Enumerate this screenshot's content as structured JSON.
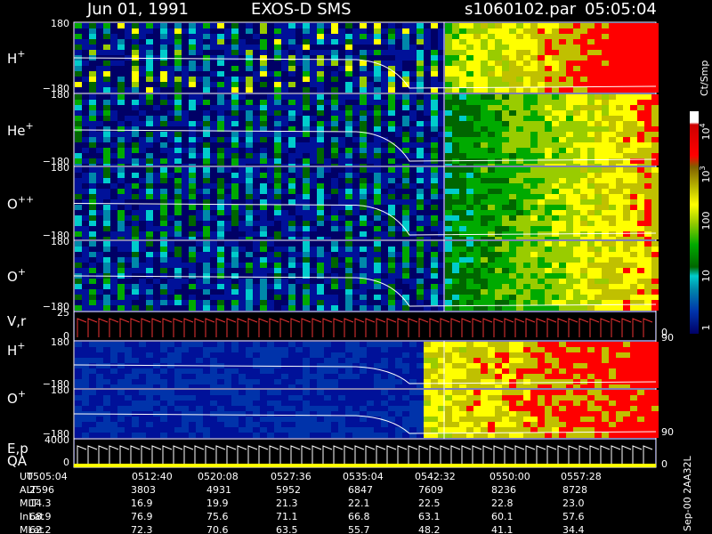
{
  "header": {
    "date": "Jun 01, 1991",
    "instrument": "EXOS-D SMS",
    "file": "s1060102.par",
    "time": "05:05:04"
  },
  "panels": [
    {
      "label": {
        "name": "H",
        "charge": "+"
      },
      "ticks": [
        "180",
        "−180"
      ]
    },
    {
      "label": {
        "name": "He",
        "charge": "+"
      },
      "ticks": [
        "180",
        "−180"
      ]
    },
    {
      "label": {
        "name": "O",
        "charge": "++"
      },
      "ticks": [
        "180",
        "−180"
      ]
    },
    {
      "label": {
        "name": "O",
        "charge": "+"
      },
      "ticks": [
        "180",
        "−180"
      ]
    },
    {
      "label": {
        "name": "V,r"
      },
      "ticks": [
        "25",
        "0"
      ],
      "right_ticks": [
        "90",
        "0"
      ]
    },
    {
      "label": {
        "name": "H",
        "charge": "+"
      },
      "ticks": [
        "180",
        "−180"
      ]
    },
    {
      "label": {
        "name": "O",
        "charge": "+"
      },
      "ticks": [
        "180",
        "−180"
      ],
      "right_ticks": [
        "90"
      ]
    },
    {
      "label": {
        "name": "E,p",
        "sub": "QA"
      },
      "ticks": [
        "4000",
        "0"
      ],
      "right_ticks": [
        "0"
      ]
    }
  ],
  "colorbar": {
    "unit": "Ct/Smp",
    "labels": [
      {
        "base": "10",
        "exp": "4"
      },
      {
        "base": "10",
        "exp": "3"
      },
      {
        "base": "100"
      },
      {
        "base": "10"
      },
      {
        "base": "1"
      }
    ]
  },
  "footer": {
    "rows": [
      {
        "label": "UT",
        "values": [
          "0505:04",
          "0512:40",
          "0520:08",
          "0527:36",
          "0535:04",
          "0542:32",
          "0550:00",
          "0557:28"
        ]
      },
      {
        "label": "ALT",
        "values": [
          "2596",
          "3803",
          "4931",
          "5952",
          "6847",
          "7609",
          "8236",
          "8728"
        ]
      },
      {
        "label": "MLT",
        "values": [
          "14.3",
          "16.9",
          "19.9",
          "21.3",
          "22.1",
          "22.5",
          "22.8",
          "23.0"
        ]
      },
      {
        "label": "InLat",
        "values": [
          "68.9",
          "76.9",
          "75.6",
          "71.1",
          "66.8",
          "63.1",
          "60.1",
          "57.6"
        ]
      },
      {
        "label": "MLat",
        "values": [
          "62.2",
          "72.3",
          "70.6",
          "63.5",
          "55.7",
          "48.2",
          "41.1",
          "34.4"
        ]
      }
    ],
    "stamp": "Sep-00 2AA32L"
  }
}
